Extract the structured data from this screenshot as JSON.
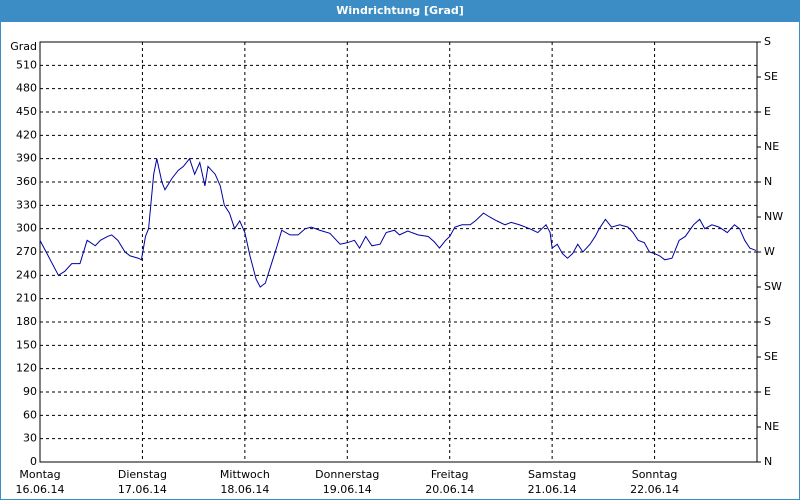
{
  "chart_data": {
    "type": "line",
    "title": "Windrichtung [Grad]",
    "y_label": "Grad",
    "xlim": [
      0,
      7
    ],
    "xticks": [
      {
        "value": 0,
        "label": "Montag",
        "date": "16.06.14"
      },
      {
        "value": 1,
        "label": "Dienstag",
        "date": "17.06.14"
      },
      {
        "value": 2,
        "label": "Mittwoch",
        "date": "18.06.14"
      },
      {
        "value": 3,
        "label": "Donnerstag",
        "date": "19.06.14"
      },
      {
        "value": 4,
        "label": "Freitag",
        "date": "20.06.14"
      },
      {
        "value": 5,
        "label": "Samstag",
        "date": "21.06.14"
      },
      {
        "value": 6,
        "label": "Sonntag",
        "date": "22.06.14"
      }
    ],
    "ylim": [
      0,
      540
    ],
    "yticks": [
      0,
      30,
      60,
      90,
      120,
      150,
      180,
      210,
      240,
      270,
      300,
      330,
      360,
      390,
      420,
      450,
      480,
      510
    ],
    "y2lim": [
      0,
      540
    ],
    "y2ticks": [
      {
        "value": 0,
        "label": "N"
      },
      {
        "value": 45,
        "label": "NE"
      },
      {
        "value": 90,
        "label": "E"
      },
      {
        "value": 135,
        "label": "SE"
      },
      {
        "value": 180,
        "label": "S"
      },
      {
        "value": 225,
        "label": "SW"
      },
      {
        "value": 270,
        "label": "W"
      },
      {
        "value": 315,
        "label": "NW"
      },
      {
        "value": 360,
        "label": "N"
      },
      {
        "value": 405,
        "label": "NE"
      },
      {
        "value": 450,
        "label": "E"
      },
      {
        "value": 495,
        "label": "SE"
      },
      {
        "value": 540,
        "label": "S"
      }
    ],
    "grid": true,
    "color": "#0000a0",
    "x": [
      0,
      0.18,
      0.24,
      0.31,
      0.39,
      0.46,
      0.54,
      0.59,
      0.66,
      0.7,
      0.76,
      0.83,
      0.88,
      0.96,
      0.99,
      1.03,
      1.06,
      1.11,
      1.14,
      1.19,
      1.22,
      1.29,
      1.35,
      1.4,
      1.46,
      1.51,
      1.56,
      1.61,
      1.64,
      1.71,
      1.76,
      1.8,
      1.85,
      1.9,
      1.95,
      2.0,
      2.05,
      2.11,
      2.15,
      2.2,
      2.26,
      2.32,
      2.36,
      2.44,
      2.52,
      2.59,
      2.65,
      2.73,
      2.83,
      2.93,
      3.0,
      3.07,
      3.12,
      3.18,
      3.24,
      3.32,
      3.38,
      3.46,
      3.51,
      3.59,
      3.69,
      3.79,
      3.85,
      3.9,
      3.96,
      4.0,
      4.05,
      4.12,
      4.2,
      4.25,
      4.33,
      4.39,
      4.46,
      4.54,
      4.6,
      4.68,
      4.78,
      4.86,
      4.94,
      4.98,
      5.0,
      5.05,
      5.1,
      5.15,
      5.2,
      5.25,
      5.3,
      5.37,
      5.42,
      5.46,
      5.52,
      5.58,
      5.66,
      5.74,
      5.79,
      5.84,
      5.9,
      5.95,
      6.0,
      6.05,
      6.1,
      6.17,
      6.24,
      6.3,
      6.38,
      6.44,
      6.49,
      6.56,
      6.63,
      6.71,
      6.78,
      6.83,
      6.88,
      6.93,
      6.99
    ],
    "values": [
      285,
      240,
      245,
      255,
      255,
      285,
      278,
      285,
      290,
      292,
      285,
      270,
      265,
      262,
      260,
      290,
      300,
      370,
      390,
      360,
      350,
      365,
      375,
      380,
      390,
      370,
      385,
      355,
      380,
      370,
      355,
      330,
      320,
      300,
      310,
      295,
      265,
      235,
      225,
      230,
      255,
      280,
      298,
      292,
      292,
      300,
      302,
      298,
      294,
      280,
      282,
      285,
      275,
      290,
      278,
      280,
      295,
      298,
      292,
      297,
      292,
      290,
      283,
      275,
      285,
      290,
      302,
      305,
      305,
      310,
      320,
      315,
      310,
      305,
      308,
      305,
      300,
      295,
      305,
      295,
      275,
      280,
      268,
      262,
      268,
      280,
      270,
      280,
      290,
      300,
      312,
      302,
      305,
      302,
      295,
      285,
      282,
      270,
      268,
      265,
      260,
      262,
      285,
      290,
      305,
      312,
      300,
      305,
      302,
      295,
      305,
      300,
      285,
      275,
      272
    ]
  }
}
